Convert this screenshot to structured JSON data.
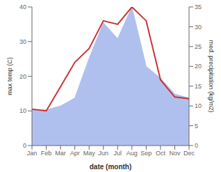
{
  "chart_data": {
    "type": "line",
    "xlabel": "date (month)",
    "ylabel": "max temp (C)",
    "y2label": "med. precipitation (kg/m2)",
    "categories": [
      "Jan",
      "Feb",
      "Mar",
      "Apr",
      "May",
      "Jun",
      "Jul",
      "Aug",
      "Sep",
      "Oct",
      "Nov",
      "Dec"
    ],
    "series": [
      {
        "type": "area",
        "axis": "y2",
        "color": "#b0c0ee",
        "values": [
          9,
          9,
          10,
          12,
          22,
          31,
          27,
          35,
          20,
          17,
          13,
          12
        ]
      },
      {
        "type": "line",
        "color": "#cc3333",
        "values": [
          10.5,
          10.0,
          17.0,
          24.0,
          28.0,
          36.0,
          35.0,
          40.0,
          36.0,
          19.0,
          14.0,
          13.5
        ]
      }
    ],
    "ylim": [
      0,
      40
    ],
    "yticks": [
      0,
      10,
      20,
      30,
      40
    ],
    "y2lim": [
      0,
      35
    ],
    "y2ticks": [
      0,
      5,
      10,
      15,
      20,
      25,
      30,
      35
    ]
  }
}
